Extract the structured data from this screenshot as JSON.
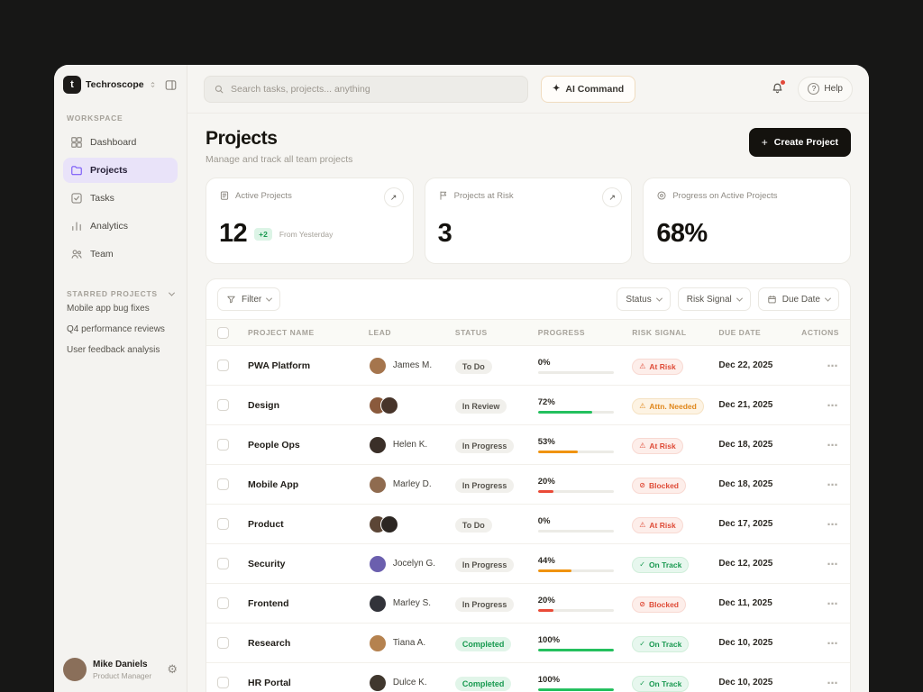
{
  "brand": {
    "name": "Techroscope",
    "logo_letter": "t"
  },
  "glyphs": {
    "sparkle": "✦",
    "arrow": "↗",
    "plus": "+",
    "more": "⋯",
    "help": "?",
    "gear": "⚙"
  },
  "topbar": {
    "search_placeholder": "Search tasks, projects... anything",
    "ai_command_label": "AI Command",
    "help_label": "Help"
  },
  "sidebar": {
    "workspace_label": "WORKSPACE",
    "nav": [
      {
        "label": "Dashboard",
        "icon": "grid",
        "state": ""
      },
      {
        "label": "Projects",
        "icon": "folder",
        "state": "active"
      },
      {
        "label": "Tasks",
        "icon": "check",
        "state": ""
      },
      {
        "label": "Analytics",
        "icon": "chart",
        "state": ""
      },
      {
        "label": "Team",
        "icon": "users",
        "state": ""
      }
    ],
    "starred_label": "STARRED PROJECTS",
    "starred": [
      {
        "label": "Mobile app bug fixes"
      },
      {
        "label": "Q4 performance reviews"
      },
      {
        "label": "User feedback analysis"
      }
    ],
    "user": {
      "name": "Mike Daniels",
      "role": "Product Manager",
      "avatar_color": "#8a6f5a"
    }
  },
  "page": {
    "title": "Projects",
    "subtitle": "Manage and track all team projects",
    "create_label": "Create Project"
  },
  "stats": [
    {
      "icon": "clipboard",
      "label": "Active Projects",
      "value": "12",
      "delta": "+2",
      "delta_note": "From Yesterday",
      "arrow": true
    },
    {
      "icon": "flag",
      "label": "Projects at Risk",
      "value": "3",
      "delta": "",
      "delta_note": "",
      "arrow": true
    },
    {
      "icon": "target",
      "label": "Progress on Active Projects",
      "value": "68%",
      "delta": "",
      "delta_note": "",
      "arrow": false
    }
  ],
  "filters": {
    "filter_label": "Filter",
    "status_label": "Status",
    "risk_label": "Risk Signal",
    "due_label": "Due Date"
  },
  "table": {
    "headers": {
      "name": "PROJECT NAME",
      "lead": "LEAD",
      "status": "STATUS",
      "progress": "PROGRESS",
      "risk": "RISK SIGNAL",
      "due": "DUE DATE",
      "actions": "ACTIONS"
    },
    "rows": [
      {
        "name": "PWA Platform",
        "lead": "James M.",
        "avatars": [
          "#a5754d"
        ],
        "status": {
          "label": "To Do",
          "tone": ""
        },
        "progress": {
          "label": "0%",
          "pct": 0,
          "tone": ""
        },
        "risk": {
          "label": "At Risk",
          "tone": "red",
          "icon": "warn"
        },
        "due": "Dec 22, 2025"
      },
      {
        "name": "Design",
        "lead": "",
        "avatars": [
          "#8a5a3c",
          "#47342a"
        ],
        "status": {
          "label": "In Review",
          "tone": ""
        },
        "progress": {
          "label": "72%",
          "pct": 72,
          "tone": "green"
        },
        "risk": {
          "label": "Attn. Needed",
          "tone": "orange",
          "icon": "warn"
        },
        "due": "Dec 21, 2025"
      },
      {
        "name": "People Ops",
        "lead": "Helen K.",
        "avatars": [
          "#3a2f28"
        ],
        "status": {
          "label": "In Progress",
          "tone": ""
        },
        "progress": {
          "label": "53%",
          "pct": 53,
          "tone": "orange"
        },
        "risk": {
          "label": "At Risk",
          "tone": "red",
          "icon": "warn"
        },
        "due": "Dec 18, 2025"
      },
      {
        "name": "Mobile App",
        "lead": "Marley D.",
        "avatars": [
          "#8f6b4f"
        ],
        "status": {
          "label": "In Progress",
          "tone": ""
        },
        "progress": {
          "label": "20%",
          "pct": 20,
          "tone": "red"
        },
        "risk": {
          "label": "Blocked",
          "tone": "red",
          "icon": "block"
        },
        "due": "Dec 18, 2025"
      },
      {
        "name": "Product",
        "lead": "",
        "avatars": [
          "#5c4636",
          "#2c2622"
        ],
        "status": {
          "label": "To Do",
          "tone": ""
        },
        "progress": {
          "label": "0%",
          "pct": 0,
          "tone": ""
        },
        "risk": {
          "label": "At Risk",
          "tone": "red",
          "icon": "warn"
        },
        "due": "Dec 17, 2025"
      },
      {
        "name": "Security",
        "lead": "Jocelyn G.",
        "avatars": [
          "#6b5fae"
        ],
        "status": {
          "label": "In Progress",
          "tone": ""
        },
        "progress": {
          "label": "44%",
          "pct": 44,
          "tone": "orange"
        },
        "risk": {
          "label": "On Track",
          "tone": "green",
          "icon": "ok"
        },
        "due": "Dec 12, 2025"
      },
      {
        "name": "Frontend",
        "lead": "Marley S.",
        "avatars": [
          "#32333a"
        ],
        "status": {
          "label": "In Progress",
          "tone": ""
        },
        "progress": {
          "label": "20%",
          "pct": 20,
          "tone": "red"
        },
        "risk": {
          "label": "Blocked",
          "tone": "red",
          "icon": "block"
        },
        "due": "Dec 11, 2025"
      },
      {
        "name": "Research",
        "lead": "Tiana A.",
        "avatars": [
          "#b5824f"
        ],
        "status": {
          "label": "Completed",
          "tone": "green"
        },
        "progress": {
          "label": "100%",
          "pct": 100,
          "tone": "green"
        },
        "risk": {
          "label": "On Track",
          "tone": "green",
          "icon": "ok"
        },
        "due": "Dec 10, 2025"
      },
      {
        "name": "HR Portal",
        "lead": "Dulce K.",
        "avatars": [
          "#40372e"
        ],
        "status": {
          "label": "Completed",
          "tone": "green"
        },
        "progress": {
          "label": "100%",
          "pct": 100,
          "tone": "green"
        },
        "risk": {
          "label": "On Track",
          "tone": "green",
          "icon": "ok"
        },
        "due": "Dec 10, 2025"
      }
    ]
  },
  "colors": {
    "accent_purple": "#7a5af8",
    "green": "#1b9a52",
    "orange": "#e0871c",
    "red": "#df4c38",
    "create_button_bg": "#14120e"
  }
}
